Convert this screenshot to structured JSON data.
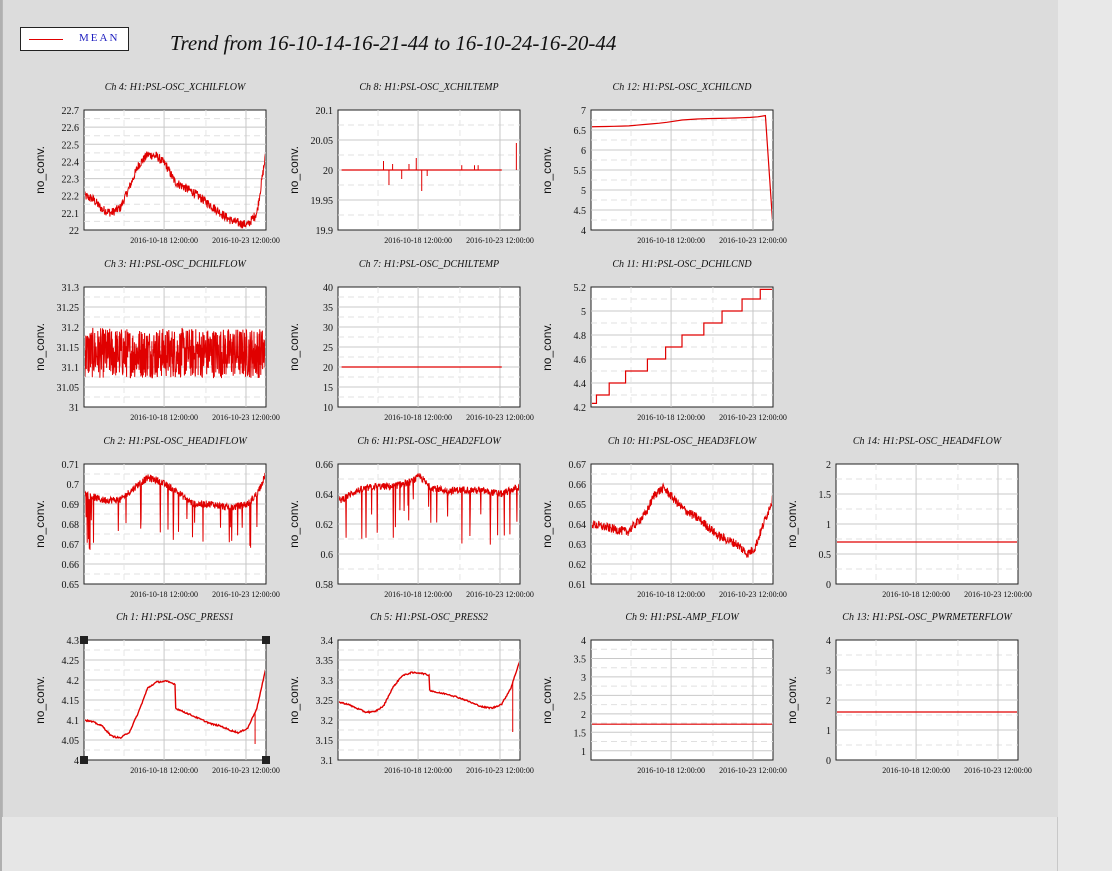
{
  "window": {
    "title": "Trend from 16-10-14-16-21-44 to 16-10-24-16-20-44"
  },
  "legend": {
    "label": "MEAN",
    "color": "#e00000"
  },
  "colors": {
    "trace": "#e00000",
    "grid": "#c8c8c8",
    "panel": "#ffffff",
    "background": "#dcdcdc"
  },
  "x_ticks": [
    "2016-10-18 12:00:00",
    "2016-10-23 12:00:00"
  ],
  "chart_data": [
    {
      "type": "line",
      "title": "Ch 4: H1:PSL-OSC_XCHILFLOW",
      "ylabel": "no_conv.",
      "ylim": [
        22,
        22.7
      ],
      "yticks": [
        "22",
        "22.1",
        "22.2",
        "22.3",
        "22.4",
        "22.5",
        "22.6",
        "22.7"
      ],
      "series": [
        {
          "pattern": "noisy",
          "x": [
            0,
            0.5,
            1,
            1.5,
            2,
            2.5,
            3,
            3.5,
            4,
            4.5,
            5,
            5.5,
            6,
            6.5,
            7,
            7.5,
            8,
            8.5,
            9,
            9.5,
            10
          ],
          "y": [
            22.2,
            22.18,
            22.12,
            22.1,
            22.13,
            22.25,
            22.38,
            22.44,
            22.43,
            22.38,
            22.28,
            22.25,
            22.22,
            22.18,
            22.14,
            22.1,
            22.06,
            22.04,
            22.03,
            22.1,
            22.45
          ]
        }
      ],
      "spikes": []
    },
    {
      "type": "line",
      "title": "Ch 8: H1:PSL-OSC_XCHILTEMP",
      "ylabel": "no_conv.",
      "ylim": [
        19.9,
        20.1
      ],
      "yticks": [
        "19.9",
        "19.95",
        "20",
        "20.05",
        "20.1"
      ],
      "series": [
        {
          "pattern": "clean",
          "x": [
            0.2,
            9.0
          ],
          "y": [
            20,
            20
          ]
        }
      ],
      "spikes": [
        [
          2.5,
          20.015
        ],
        [
          2.8,
          19.975
        ],
        [
          3.0,
          20.01
        ],
        [
          3.5,
          19.985
        ],
        [
          3.9,
          20.01
        ],
        [
          4.3,
          20.02
        ],
        [
          4.6,
          19.965
        ],
        [
          4.9,
          19.99
        ],
        [
          6.8,
          20.008
        ],
        [
          7.5,
          20.008
        ],
        [
          7.7,
          20.008
        ],
        [
          9.8,
          20.045
        ]
      ]
    },
    {
      "type": "line",
      "title": "Ch 12: H1:PSL-OSC_XCHILCND",
      "ylabel": "no_conv.",
      "ylim": [
        4,
        7
      ],
      "yticks": [
        "4",
        "4.5",
        "5",
        "5.5",
        "6",
        "6.5",
        "7"
      ],
      "series": [
        {
          "pattern": "clean",
          "x": [
            0,
            2,
            4,
            5,
            6,
            7,
            8,
            9,
            9.6,
            9.65,
            9.7,
            10
          ],
          "y": [
            6.58,
            6.6,
            6.68,
            6.75,
            6.78,
            6.79,
            6.8,
            6.82,
            6.86,
            6.86,
            4.05,
            4.05
          ]
        }
      ],
      "spikes": []
    },
    {
      "type": "line",
      "title": "Ch 3: H1:PSL-OSC_DCHILFLOW",
      "ylabel": "no_conv.",
      "ylim": [
        31,
        31.3
      ],
      "yticks": [
        "31",
        "31.05",
        "31.1",
        "31.15",
        "31.2",
        "31.25",
        "31.3"
      ],
      "series": [
        {
          "pattern": "band",
          "x": [
            0,
            10
          ],
          "y": [
            31.135,
            31.135
          ]
        }
      ],
      "spikes": []
    },
    {
      "type": "line",
      "title": "Ch 7: H1:PSL-OSC_DCHILTEMP",
      "ylabel": "no_conv.",
      "ylim": [
        10,
        40
      ],
      "yticks": [
        "10",
        "15",
        "20",
        "25",
        "30",
        "35",
        "40"
      ],
      "series": [
        {
          "pattern": "clean",
          "x": [
            0.2,
            9.0
          ],
          "y": [
            20,
            20
          ]
        }
      ],
      "spikes": []
    },
    {
      "type": "line",
      "title": "Ch 11: H1:PSL-OSC_DCHILCND",
      "ylabel": "no_conv.",
      "ylim": [
        4.2,
        5.2
      ],
      "yticks": [
        "4.2",
        "4.4",
        "4.6",
        "4.8",
        "5",
        "5.2"
      ],
      "series": [
        {
          "pattern": "step",
          "x": [
            0,
            0.3,
            1.0,
            1.9,
            3.1,
            4.1,
            5.0,
            6.2,
            7.2,
            8.3,
            9.3,
            10
          ],
          "y": [
            4.23,
            4.3,
            4.4,
            4.5,
            4.6,
            4.7,
            4.8,
            4.9,
            5.0,
            5.1,
            5.18,
            5.18
          ]
        }
      ],
      "spikes": []
    },
    {
      "type": "line",
      "title": "Ch 2: H1:PSL-OSC_HEAD1FLOW",
      "ylabel": "no_conv.",
      "ylim": [
        0.65,
        0.71
      ],
      "yticks": [
        "0.65",
        "0.66",
        "0.67",
        "0.68",
        "0.69",
        "0.7",
        "0.71"
      ],
      "series": [
        {
          "pattern": "noisy-down",
          "x": [
            0,
            1,
            2,
            3,
            3.5,
            4,
            5,
            6,
            7,
            8,
            9,
            9.5,
            10
          ],
          "y": [
            0.695,
            0.692,
            0.692,
            0.7,
            0.703,
            0.702,
            0.697,
            0.69,
            0.69,
            0.688,
            0.69,
            0.695,
            0.705
          ]
        }
      ],
      "spikes": []
    },
    {
      "type": "line",
      "title": "Ch 6: H1:PSL-OSC_HEAD2FLOW",
      "ylabel": "no_conv.",
      "ylim": [
        0.58,
        0.66
      ],
      "yticks": [
        "0.58",
        "0.6",
        "0.62",
        "0.64",
        "0.66"
      ],
      "series": [
        {
          "pattern": "noisy-down",
          "x": [
            0,
            1,
            2,
            3,
            4,
            4.5,
            5,
            6,
            7,
            8,
            9,
            10
          ],
          "y": [
            0.635,
            0.642,
            0.645,
            0.645,
            0.648,
            0.652,
            0.645,
            0.642,
            0.643,
            0.642,
            0.64,
            0.645
          ]
        }
      ],
      "spikes": []
    },
    {
      "type": "line",
      "title": "Ch 10: H1:PSL-OSC_HEAD3FLOW",
      "ylabel": "no_conv.",
      "ylim": [
        0.61,
        0.67
      ],
      "yticks": [
        "0.61",
        "0.62",
        "0.63",
        "0.64",
        "0.65",
        "0.66",
        "0.67"
      ],
      "series": [
        {
          "pattern": "noisy",
          "x": [
            0,
            1,
            2,
            3,
            3.5,
            4,
            5,
            6,
            7,
            8,
            8.6,
            9,
            10
          ],
          "y": [
            0.64,
            0.638,
            0.636,
            0.645,
            0.655,
            0.658,
            0.648,
            0.642,
            0.634,
            0.63,
            0.625,
            0.628,
            0.653
          ]
        }
      ],
      "spikes": []
    },
    {
      "type": "line",
      "title": "Ch 14: H1:PSL-OSC_HEAD4FLOW",
      "ylabel": "no_conv.",
      "ylim": [
        0,
        2
      ],
      "yticks": [
        "0",
        "0.5",
        "1",
        "1.5",
        "2"
      ],
      "series": [
        {
          "pattern": "clean",
          "x": [
            0,
            10
          ],
          "y": [
            0.7,
            0.7
          ]
        }
      ],
      "spikes": []
    },
    {
      "type": "line",
      "title": "Ch 1: H1:PSL-OSC_PRESS1",
      "ylabel": "no_conv.",
      "ylim": [
        4,
        4.3
      ],
      "yticks": [
        "4",
        "4.05",
        "4.1",
        "4.15",
        "4.2",
        "4.25",
        "4.3"
      ],
      "selected": true,
      "series": [
        {
          "pattern": "thin",
          "x": [
            0,
            0.5,
            1,
            1.5,
            2,
            2.5,
            3,
            3.5,
            4,
            4.5,
            5,
            5.01,
            5.5,
            6,
            6.5,
            7,
            7.5,
            8,
            8.5,
            9,
            9.5,
            10
          ],
          "y": [
            4.1,
            4.095,
            4.085,
            4.06,
            4.055,
            4.07,
            4.12,
            4.18,
            4.195,
            4.197,
            4.19,
            4.13,
            4.12,
            4.11,
            4.1,
            4.09,
            4.085,
            4.075,
            4.068,
            4.08,
            4.13,
            4.23
          ]
        }
      ],
      "spikes": [
        [
          9.4,
          4.04
        ]
      ]
    },
    {
      "type": "line",
      "title": "Ch 5: H1:PSL-OSC_PRESS2",
      "ylabel": "no_conv.",
      "ylim": [
        3.1,
        3.4
      ],
      "yticks": [
        "3.1",
        "3.15",
        "3.2",
        "3.25",
        "3.3",
        "3.35",
        "3.4"
      ],
      "series": [
        {
          "pattern": "thin",
          "x": [
            0,
            0.5,
            1,
            1.5,
            2,
            2.5,
            3,
            3.5,
            4,
            4.5,
            5,
            5.01,
            5.5,
            6,
            6.5,
            7,
            7.5,
            8,
            8.5,
            9,
            9.5,
            10
          ],
          "y": [
            3.245,
            3.24,
            3.23,
            3.22,
            3.22,
            3.235,
            3.28,
            3.31,
            3.318,
            3.318,
            3.312,
            3.275,
            3.268,
            3.265,
            3.258,
            3.25,
            3.24,
            3.232,
            3.23,
            3.24,
            3.28,
            3.35
          ]
        }
      ],
      "spikes": [
        [
          9.6,
          3.17
        ]
      ]
    },
    {
      "type": "line",
      "title": "Ch 9: H1:PSL-AMP_FLOW",
      "ylabel": "no_conv.",
      "ylim": [
        0.75,
        4
      ],
      "yticks": [
        "1",
        "1.5",
        "2",
        "2.5",
        "3",
        "3.5",
        "4"
      ],
      "series": [
        {
          "pattern": "clean",
          "x": [
            0,
            10
          ],
          "y": [
            1.72,
            1.72
          ]
        }
      ],
      "spikes": []
    },
    {
      "type": "line",
      "title": "Ch 13: H1:PSL-OSC_PWRMETERFLOW",
      "ylabel": "no_conv.",
      "ylim": [
        0,
        4
      ],
      "yticks": [
        "0",
        "1",
        "2",
        "3",
        "4"
      ],
      "series": [
        {
          "pattern": "clean",
          "x": [
            0,
            10
          ],
          "y": [
            1.6,
            1.6
          ]
        }
      ],
      "spikes": []
    }
  ]
}
